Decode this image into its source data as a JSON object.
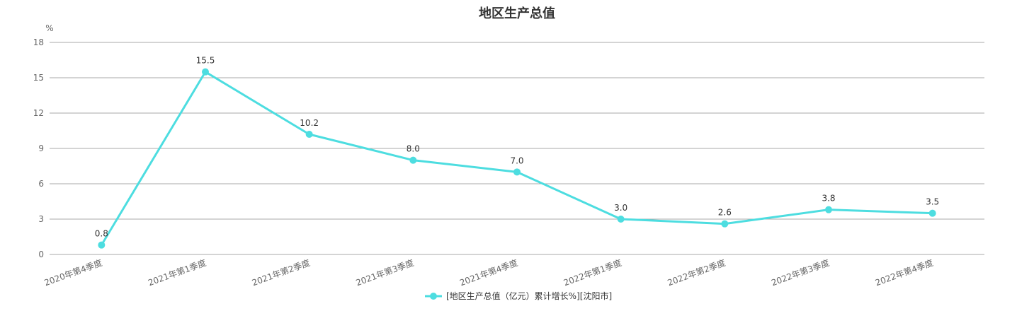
{
  "chart_data": {
    "type": "line",
    "title": "地区生产总值",
    "ylabel": "%",
    "ylim": [
      0,
      18
    ],
    "yticks": [
      0,
      3,
      6,
      9,
      12,
      15,
      18
    ],
    "categories": [
      "2020年第4季度",
      "2021年第1季度",
      "2021年第2季度",
      "2021年第3季度",
      "2021年第4季度",
      "2022年第1季度",
      "2022年第2季度",
      "2022年第3季度",
      "2022年第4季度"
    ],
    "series": [
      {
        "name": "[地区生产总值（亿元）累计增长%][沈阳市]",
        "values": [
          0.8,
          15.5,
          10.2,
          8.0,
          7.0,
          3.0,
          2.6,
          3.8,
          3.5
        ],
        "labels": [
          "0.8",
          "15.5",
          "10.2",
          "8.0",
          "7.0",
          "3.0",
          "2.6",
          "3.8",
          "3.5"
        ],
        "color": "#4ddde0"
      }
    ],
    "grid": true,
    "legend": "bottom-center"
  }
}
